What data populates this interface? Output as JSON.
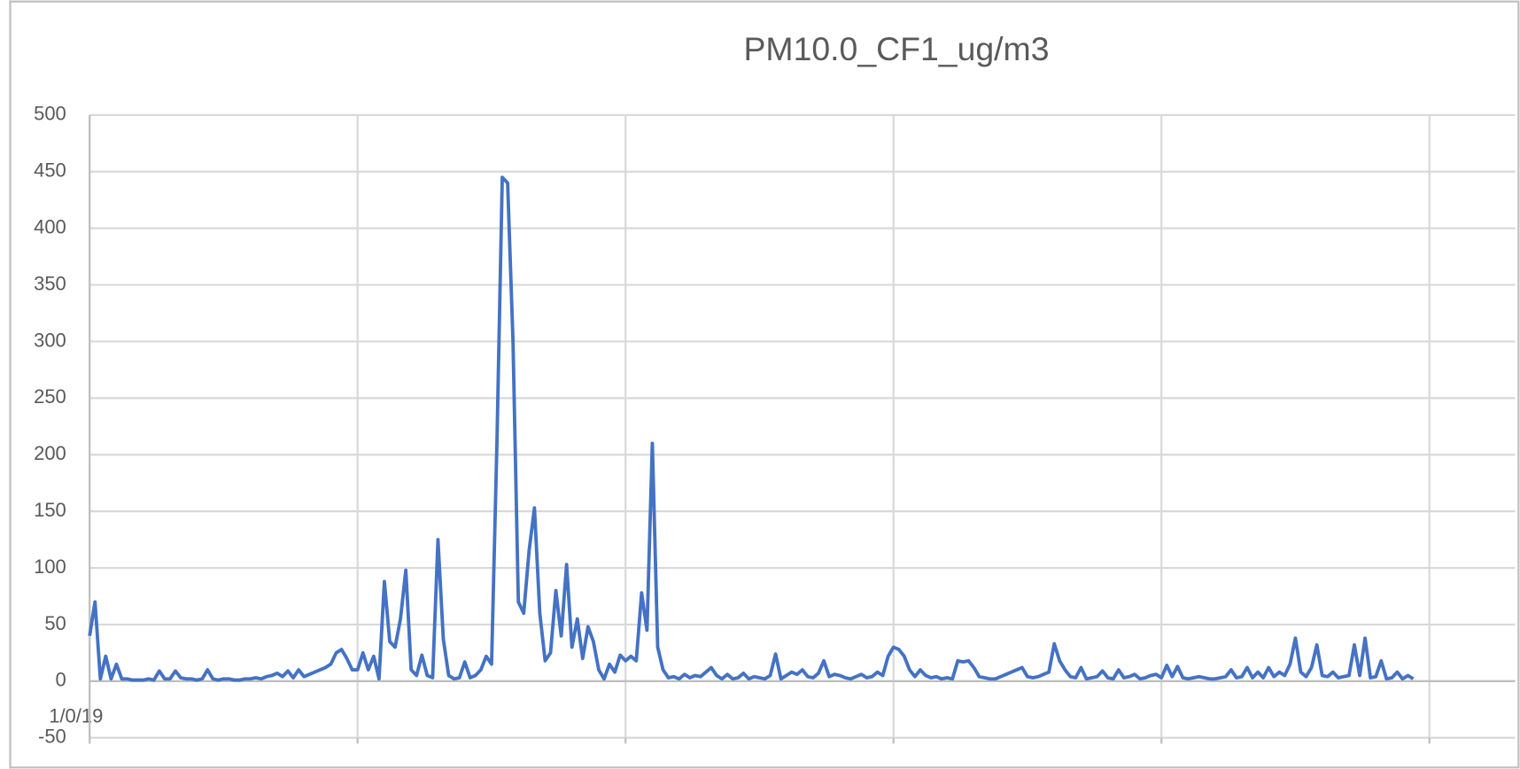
{
  "chart_data": {
    "type": "line",
    "title": "PM10.0_CF1_ug/m3",
    "series": [
      {
        "name": "PM10.0_CF1_ug/m3",
        "color": "#4472c4",
        "values": [
          40,
          70,
          2,
          22,
          2,
          15,
          2,
          2,
          1,
          1,
          1,
          2,
          1,
          9,
          2,
          2,
          9,
          3,
          2,
          2,
          1,
          2,
          10,
          2,
          1,
          2,
          2,
          1,
          1,
          2,
          2,
          3,
          2,
          4,
          5,
          7,
          4,
          9,
          3,
          10,
          4,
          6,
          8,
          10,
          12,
          15,
          25,
          28,
          20,
          10,
          10,
          25,
          10,
          22,
          2,
          88,
          35,
          30,
          55,
          98,
          10,
          5,
          23,
          5,
          3,
          125,
          37,
          5,
          2,
          3,
          17,
          3,
          5,
          10,
          22,
          15,
          210,
          445,
          440,
          300,
          70,
          60,
          115,
          153,
          60,
          18,
          25,
          80,
          40,
          103,
          30,
          55,
          20,
          48,
          35,
          10,
          2,
          15,
          8,
          23,
          18,
          22,
          18,
          78,
          45,
          210,
          30,
          10,
          3,
          4,
          2,
          6,
          3,
          5,
          4,
          8,
          12,
          5,
          2,
          6,
          2,
          3,
          7,
          2,
          4,
          3,
          2,
          5,
          24,
          2,
          5,
          8,
          6,
          10,
          4,
          3,
          7,
          18,
          4,
          6,
          5,
          3,
          2,
          4,
          6,
          3,
          4,
          8,
          5,
          22,
          30,
          28,
          22,
          10,
          4,
          10,
          5,
          3,
          4,
          2,
          3,
          2,
          18,
          17,
          18,
          12,
          4,
          3,
          2,
          2,
          4,
          6,
          8,
          10,
          12,
          4,
          3,
          4,
          6,
          8,
          33,
          18,
          10,
          4,
          3,
          12,
          2,
          3,
          4,
          9,
          3,
          2,
          10,
          3,
          4,
          6,
          2,
          3,
          5,
          6,
          3,
          14,
          4,
          13,
          3,
          2,
          3,
          4,
          3,
          2,
          2,
          3,
          4,
          10,
          3,
          4,
          12,
          3,
          8,
          3,
          12,
          4,
          8,
          5,
          15,
          38,
          8,
          4,
          12,
          32,
          5,
          4,
          8,
          3,
          4,
          5,
          32,
          5,
          38,
          3,
          4,
          18,
          2,
          3,
          8,
          2,
          5,
          2
        ]
      }
    ],
    "xlim": [
      0,
      266
    ],
    "xticks": [
      {
        "value": 0,
        "label": "1/0/19"
      },
      {
        "value": 50,
        "label": null
      },
      {
        "value": 100,
        "label": null
      },
      {
        "value": 150,
        "label": null
      },
      {
        "value": 200,
        "label": null
      },
      {
        "value": 250,
        "label": null
      }
    ],
    "ylim": [
      -50,
      500
    ],
    "yticks": [
      -50,
      0,
      50,
      100,
      150,
      200,
      250,
      300,
      350,
      400,
      450,
      500
    ],
    "grid": true
  }
}
